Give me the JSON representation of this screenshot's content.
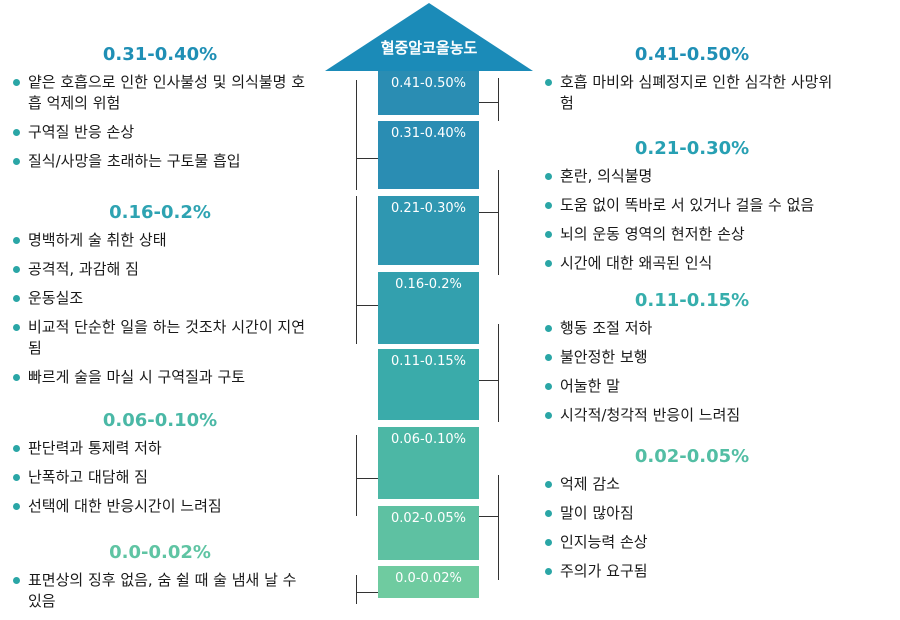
{
  "arrow": {
    "title": "혈중알코올농도",
    "segments": [
      {
        "label": "0.41-0.50%",
        "color": "#2a8db3"
      },
      {
        "label": "0.31-0.40%",
        "color": "#2a8db3"
      },
      {
        "label": "0.21-0.30%",
        "color": "#2f97b1"
      },
      {
        "label": "0.16-0.2%",
        "color": "#33a0ae"
      },
      {
        "label": "0.11-0.15%",
        "color": "#3aabaa"
      },
      {
        "label": "0.06-0.10%",
        "color": "#4cb7a5"
      },
      {
        "label": "0.02-0.05%",
        "color": "#5ec1a2"
      },
      {
        "label": "0.0-0.02%",
        "color": "#6fcba0"
      }
    ],
    "head_color": "#1b8bb8"
  },
  "left_groups": [
    {
      "title": "0.31-0.40%",
      "color": "#1f8fb5",
      "items": [
        "얕은 호흡으로 인한 인사불성 및 의식불명 호흡 억제의 위험",
        "구역질 반응 손상",
        "질식/사망을 초래하는 구토물 흡입"
      ]
    },
    {
      "title": "0.16-0.2%",
      "color": "#2ea3b2",
      "items": [
        "명백하게 술 취한 상태",
        "공격적, 과감해 짐",
        "운동실조",
        "비교적 단순한 일을 하는 것조차 시간이 지연됨",
        "빠르게 술을 마실 시 구역질과 구토"
      ]
    },
    {
      "title": "0.06-0.10%",
      "color": "#4ab8a6",
      "items": [
        "판단력과 통제력 저하",
        "난폭하고 대담해 짐",
        "선택에 대한 반응시간이 느려짐"
      ]
    },
    {
      "title": "0.0-0.02%",
      "color": "#5fc4a3",
      "items": [
        "표면상의 징후 없음, 숨 쉴 때 술 냄새 날 수 있음"
      ]
    }
  ],
  "right_groups": [
    {
      "title": "0.41-0.50%",
      "color": "#1f8fb5",
      "items": [
        "호흡 마비와 심폐정지로 인한 심각한 사망위험"
      ]
    },
    {
      "title": "0.21-0.30%",
      "color": "#27a0b3",
      "items": [
        "혼란, 의식불명",
        "도움 없이 똑바로 서 있거나 걸을 수 없음",
        "뇌의 운동 영역의 현저한 손상",
        "시간에 대한 왜곡된 인식"
      ]
    },
    {
      "title": "0.11-0.15%",
      "color": "#36aeac",
      "items": [
        "행동 조절 저하",
        "불안정한 보행",
        "어눌한 말",
        "시각적/청각적 반응이 느려짐"
      ]
    },
    {
      "title": "0.02-0.05%",
      "color": "#53bea4",
      "items": [
        "억제 감소",
        "말이 많아짐",
        "인지능력 손상",
        "주의가 요구됨"
      ]
    }
  ]
}
